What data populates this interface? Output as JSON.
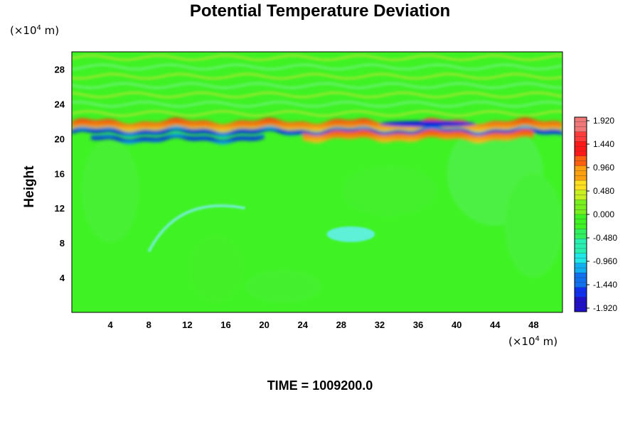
{
  "chart_data": {
    "type": "heatmap",
    "title": "Potential Temperature Deviation",
    "ylabel": "Height",
    "xlabel": "",
    "y_unit": {
      "prefix": "(×10",
      "exp": "4",
      "suffix": " m)"
    },
    "x_unit": {
      "prefix": "(×10",
      "exp": "4",
      "suffix": " m)"
    },
    "footer": "TIME = 1009200.0",
    "xlim": [
      0,
      51
    ],
    "ylim": [
      0,
      30
    ],
    "x_ticks": [
      "4",
      "8",
      "12",
      "16",
      "20",
      "24",
      "28",
      "32",
      "36",
      "40",
      "44",
      "48"
    ],
    "y_ticks": [
      "4",
      "8",
      "12",
      "16",
      "20",
      "24",
      "28"
    ],
    "colorbar": {
      "range": [
        -1.92,
        1.92
      ],
      "labels": [
        "1.920",
        "1.440",
        "0.960",
        "0.480",
        "0.000",
        "-0.480",
        "-0.960",
        "-1.440",
        "-1.920"
      ]
    },
    "features": [
      {
        "kind": "warm_band",
        "y": 21.6,
        "x_range": [
          0,
          51
        ],
        "value": 1.9
      },
      {
        "kind": "cold_band",
        "y": 20.8,
        "x_range": [
          0,
          51
        ],
        "value": -1.8
      },
      {
        "kind": "warm_band",
        "y": 20.3,
        "x_range": [
          24,
          48
        ],
        "value": 1.9
      },
      {
        "kind": "cold_band",
        "y": 20.0,
        "x_range": [
          2,
          20
        ],
        "value": -1.8
      },
      {
        "kind": "cold_patch",
        "x": 37,
        "y": 21.7,
        "value": -1.9
      },
      {
        "kind": "wave_region",
        "y_range": [
          22.5,
          30
        ],
        "amplitude": 0.4
      },
      {
        "kind": "cold_arc",
        "x_range": [
          8,
          18
        ],
        "y_range": [
          7,
          12
        ],
        "value": -0.6
      },
      {
        "kind": "cold_patch",
        "x": 29,
        "y": 9,
        "value": -0.7
      }
    ]
  }
}
